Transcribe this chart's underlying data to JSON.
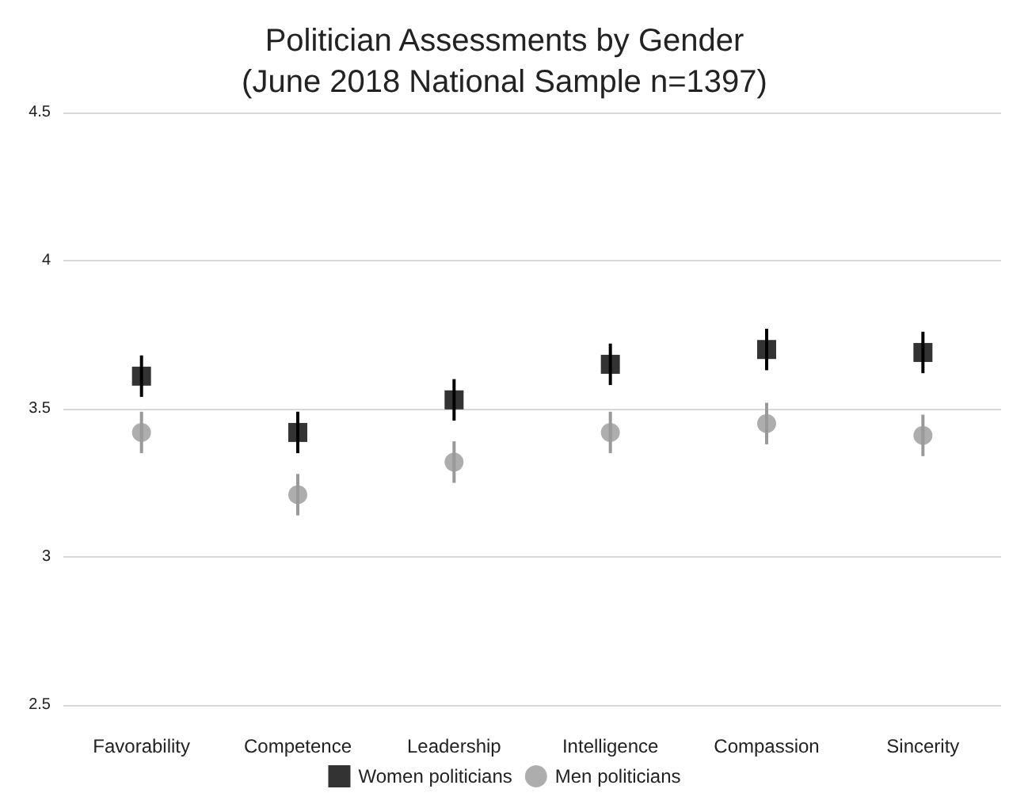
{
  "chart_data": {
    "type": "scatter",
    "title": "Politician Assessments by Gender\n(June 2018 National Sample n=1397)",
    "categories": [
      "Favorability",
      "Competence",
      "Leadership",
      "Intelligence",
      "Compassion",
      "Sincerity"
    ],
    "series": [
      {
        "name": "Women politicians",
        "color": "#000000",
        "marker": "square",
        "values": [
          3.61,
          3.42,
          3.53,
          3.65,
          3.7,
          3.69
        ],
        "errors": [
          0.07,
          0.07,
          0.07,
          0.07,
          0.07,
          0.07
        ]
      },
      {
        "name": "Men politicians",
        "color": "#999999",
        "marker": "circle",
        "values": [
          3.42,
          3.21,
          3.32,
          3.42,
          3.45,
          3.41
        ],
        "errors": [
          0.07,
          0.07,
          0.07,
          0.07,
          0.07,
          0.07
        ]
      }
    ],
    "ylim": [
      2.5,
      4.5
    ],
    "yticks": [
      2.5,
      3,
      3.5,
      4,
      4.5
    ],
    "grid": "y",
    "legend": "bottom"
  }
}
